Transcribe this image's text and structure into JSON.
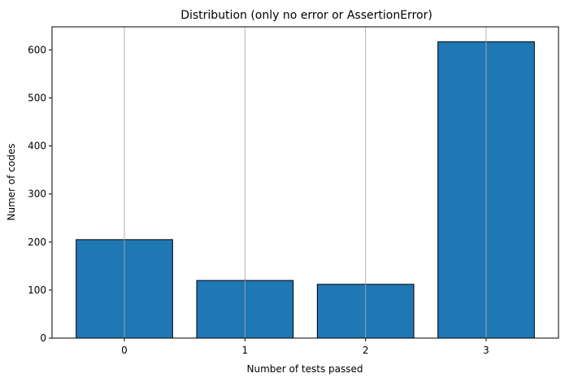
{
  "chart_data": {
    "type": "bar",
    "title": "Distribution (only no error or AssertionError)",
    "xlabel": "Number of tests passed",
    "ylabel": "Numer of codes",
    "categories": [
      "0",
      "1",
      "2",
      "3"
    ],
    "values": [
      205,
      120,
      112,
      617
    ],
    "ylim": [
      0,
      648
    ],
    "yticks": [
      0,
      100,
      200,
      300,
      400,
      500,
      600
    ],
    "grid": "x",
    "bar_color": "#1f77b4",
    "edge_color": "#000000",
    "grid_color": "#b0b0b0"
  }
}
